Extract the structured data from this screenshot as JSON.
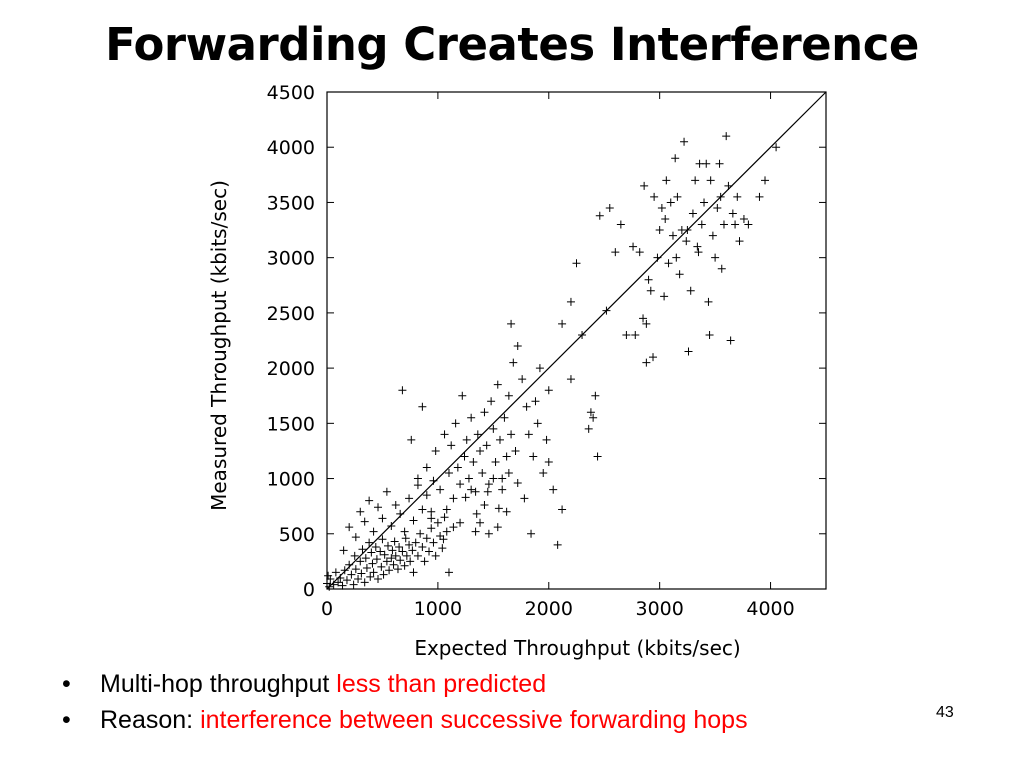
{
  "slide": {
    "title": "Forwarding Creates Interference",
    "page_number": "43",
    "accent_color": "#ff0000"
  },
  "bullets": [
    {
      "text": "Multi-hop throughput ",
      "highlight": "less than predicted"
    },
    {
      "text": "Reason: ",
      "highlight": "interference between successive forwarding hops"
    }
  ],
  "chart_data": {
    "type": "scatter",
    "title": "",
    "xlabel": "Expected Throughput (kbits/sec)",
    "ylabel": "Measured Throughput (kbits/sec)",
    "xlim": [
      0,
      4500
    ],
    "ylim": [
      0,
      4500
    ],
    "xticks": [
      0,
      1000,
      2000,
      3000,
      4000
    ],
    "yticks": [
      0,
      500,
      1000,
      1500,
      2000,
      2500,
      3000,
      3500,
      4000,
      4500
    ],
    "xtick_labels": [
      "0",
      "1000",
      "2000",
      "3000",
      "4000"
    ],
    "ytick_labels": [
      "0",
      "500",
      "1000",
      "1500",
      "2000",
      "2500",
      "3000",
      "3500",
      "4000",
      "4500"
    ],
    "marker": "plus",
    "grid": false,
    "legend": "none",
    "reference_line": {
      "from": [
        0,
        0
      ],
      "to": [
        4500,
        4500
      ]
    },
    "series": [
      {
        "points": [
          [
            0,
            50
          ],
          [
            10,
            120
          ],
          [
            20,
            20
          ],
          [
            30,
            90
          ],
          [
            60,
            40
          ],
          [
            80,
            150
          ],
          [
            100,
            60
          ],
          [
            120,
            100
          ],
          [
            140,
            30
          ],
          [
            160,
            170
          ],
          [
            180,
            80
          ],
          [
            200,
            220
          ],
          [
            220,
            130
          ],
          [
            240,
            40
          ],
          [
            250,
            300
          ],
          [
            260,
            180
          ],
          [
            280,
            90
          ],
          [
            300,
            250
          ],
          [
            310,
            140
          ],
          [
            320,
            360
          ],
          [
            340,
            60
          ],
          [
            350,
            280
          ],
          [
            360,
            190
          ],
          [
            380,
            420
          ],
          [
            390,
            110
          ],
          [
            400,
            330
          ],
          [
            410,
            230
          ],
          [
            420,
            150
          ],
          [
            440,
            380
          ],
          [
            450,
            270
          ],
          [
            460,
            90
          ],
          [
            480,
            340
          ],
          [
            490,
            200
          ],
          [
            500,
            450
          ],
          [
            510,
            130
          ],
          [
            520,
            310
          ],
          [
            540,
            250
          ],
          [
            550,
            390
          ],
          [
            560,
            170
          ],
          [
            580,
            280
          ],
          [
            590,
            350
          ],
          [
            600,
            220
          ],
          [
            610,
            430
          ],
          [
            620,
            300
          ],
          [
            640,
            180
          ],
          [
            650,
            380
          ],
          [
            660,
            260
          ],
          [
            680,
            340
          ],
          [
            700,
            210
          ],
          [
            710,
            460
          ],
          [
            720,
            300
          ],
          [
            740,
            400
          ],
          [
            750,
            250
          ],
          [
            770,
            350
          ],
          [
            780,
            150
          ],
          [
            800,
            420
          ],
          [
            820,
            300
          ],
          [
            840,
            500
          ],
          [
            860,
            380
          ],
          [
            880,
            250
          ],
          [
            900,
            460
          ],
          [
            920,
            340
          ],
          [
            940,
            550
          ],
          [
            960,
            420
          ],
          [
            980,
            300
          ],
          [
            1000,
            600
          ],
          [
            1020,
            480
          ],
          [
            1040,
            370
          ],
          [
            1060,
            650
          ],
          [
            1080,
            520
          ],
          [
            150,
            350
          ],
          [
            200,
            560
          ],
          [
            260,
            470
          ],
          [
            300,
            700
          ],
          [
            340,
            610
          ],
          [
            380,
            800
          ],
          [
            420,
            520
          ],
          [
            460,
            740
          ],
          [
            500,
            640
          ],
          [
            540,
            880
          ],
          [
            580,
            570
          ],
          [
            620,
            760
          ],
          [
            660,
            680
          ],
          [
            700,
            520
          ],
          [
            740,
            820
          ],
          [
            780,
            620
          ],
          [
            820,
            940
          ],
          [
            860,
            720
          ],
          [
            900,
            850
          ],
          [
            940,
            640
          ],
          [
            680,
            1800
          ],
          [
            760,
            1350
          ],
          [
            820,
            1000
          ],
          [
            860,
            1650
          ],
          [
            900,
            1100
          ],
          [
            940,
            700
          ],
          [
            980,
            1250
          ],
          [
            1020,
            900
          ],
          [
            1060,
            1400
          ],
          [
            1100,
            1050
          ],
          [
            1120,
            1300
          ],
          [
            1140,
            820
          ],
          [
            1160,
            1500
          ],
          [
            1180,
            1100
          ],
          [
            1200,
            950
          ],
          [
            1220,
            1750
          ],
          [
            1240,
            1200
          ],
          [
            1260,
            1350
          ],
          [
            1280,
            1000
          ],
          [
            1300,
            1550
          ],
          [
            1320,
            1150
          ],
          [
            1340,
            880
          ],
          [
            1360,
            1400
          ],
          [
            1380,
            1250
          ],
          [
            1400,
            1050
          ],
          [
            1420,
            1600
          ],
          [
            1440,
            1300
          ],
          [
            1460,
            950
          ],
          [
            1480,
            1700
          ],
          [
            1500,
            1450
          ],
          [
            1520,
            1150
          ],
          [
            1540,
            1850
          ],
          [
            1560,
            1350
          ],
          [
            1580,
            1000
          ],
          [
            1600,
            1550
          ],
          [
            1620,
            1200
          ],
          [
            1640,
            1750
          ],
          [
            1660,
            1400
          ],
          [
            1680,
            2050
          ],
          [
            1700,
            1250
          ],
          [
            1660,
            2400
          ],
          [
            1720,
            2200
          ],
          [
            1760,
            1900
          ],
          [
            1800,
            1650
          ],
          [
            1820,
            1400
          ],
          [
            1860,
            1200
          ],
          [
            1720,
            960
          ],
          [
            1780,
            820
          ],
          [
            1840,
            500
          ],
          [
            1900,
            1500
          ],
          [
            1640,
            1050
          ],
          [
            1620,
            700
          ],
          [
            1580,
            900
          ],
          [
            1540,
            560
          ],
          [
            1500,
            1000
          ],
          [
            1460,
            500
          ],
          [
            1420,
            760
          ],
          [
            1380,
            600
          ],
          [
            1340,
            520
          ],
          [
            1300,
            900
          ],
          [
            1100,
            150
          ],
          [
            1200,
            600
          ],
          [
            1050,
            450
          ],
          [
            960,
            980
          ],
          [
            1080,
            720
          ],
          [
            1140,
            560
          ],
          [
            1250,
            830
          ],
          [
            1350,
            680
          ],
          [
            1450,
            880
          ],
          [
            1550,
            730
          ],
          [
            1950,
            1050
          ],
          [
            2000,
            1150
          ],
          [
            1980,
            1350
          ],
          [
            2040,
            900
          ],
          [
            2080,
            400
          ],
          [
            2120,
            720
          ],
          [
            2200,
            1900
          ],
          [
            2250,
            2950
          ],
          [
            2300,
            2300
          ],
          [
            2360,
            1450
          ],
          [
            2380,
            1600
          ],
          [
            2420,
            1750
          ],
          [
            2440,
            1200
          ],
          [
            2460,
            3380
          ],
          [
            2200,
            2600
          ],
          [
            2120,
            2400
          ],
          [
            1920,
            2000
          ],
          [
            2000,
            1800
          ],
          [
            1880,
            1700
          ],
          [
            2400,
            1550
          ],
          [
            2520,
            2520
          ],
          [
            2550,
            3450
          ],
          [
            2600,
            3050
          ],
          [
            2650,
            3300
          ],
          [
            2700,
            2300
          ],
          [
            2760,
            3100
          ],
          [
            2820,
            3050
          ],
          [
            2850,
            2450
          ],
          [
            2860,
            3650
          ],
          [
            2880,
            2400
          ],
          [
            2900,
            2800
          ],
          [
            2920,
            2700
          ],
          [
            2940,
            2100
          ],
          [
            2980,
            3000
          ],
          [
            3000,
            3250
          ],
          [
            3020,
            3450
          ],
          [
            3040,
            2650
          ],
          [
            3060,
            3700
          ],
          [
            3080,
            2950
          ],
          [
            3100,
            3500
          ],
          [
            3120,
            3200
          ],
          [
            3140,
            3900
          ],
          [
            3160,
            3550
          ],
          [
            3180,
            2850
          ],
          [
            3200,
            3250
          ],
          [
            3220,
            4050
          ],
          [
            3240,
            3150
          ],
          [
            3260,
            2150
          ],
          [
            3280,
            2700
          ],
          [
            3300,
            3400
          ],
          [
            3320,
            3700
          ],
          [
            3340,
            3100
          ],
          [
            3360,
            3850
          ],
          [
            3380,
            3300
          ],
          [
            3400,
            3500
          ],
          [
            3420,
            3850
          ],
          [
            3440,
            2600
          ],
          [
            3460,
            3700
          ],
          [
            3480,
            3200
          ],
          [
            3500,
            3000
          ],
          [
            3520,
            3450
          ],
          [
            3540,
            3850
          ],
          [
            3560,
            2900
          ],
          [
            3580,
            3300
          ],
          [
            3600,
            4100
          ],
          [
            3620,
            3650
          ],
          [
            3640,
            2250
          ],
          [
            3660,
            3400
          ],
          [
            3680,
            3300
          ],
          [
            3700,
            3550
          ],
          [
            3720,
            3150
          ],
          [
            3760,
            3350
          ],
          [
            3800,
            3300
          ],
          [
            3900,
            3550
          ],
          [
            3950,
            3700
          ],
          [
            4050,
            4000
          ],
          [
            2950,
            3550
          ],
          [
            3050,
            3350
          ],
          [
            3150,
            3000
          ],
          [
            3250,
            3250
          ],
          [
            3350,
            3050
          ],
          [
            3450,
            2300
          ],
          [
            3550,
            3550
          ],
          [
            2880,
            2050
          ],
          [
            2780,
            2300
          ]
        ]
      }
    ]
  }
}
